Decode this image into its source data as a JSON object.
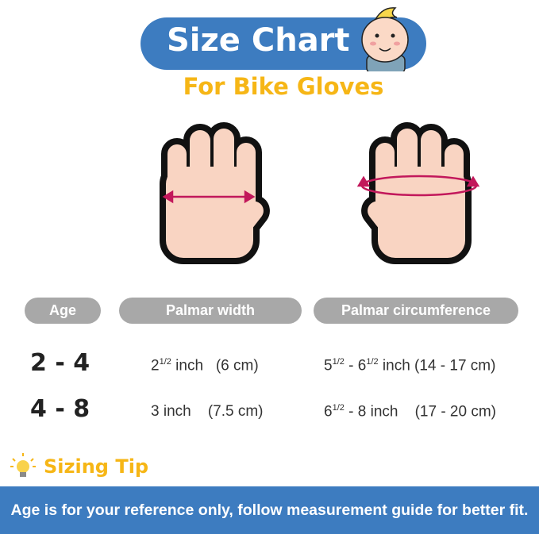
{
  "colors": {
    "blue": "#3d7cc0",
    "yellow": "#f6b616",
    "gray": "#a8a8a8",
    "skin": "#f9d4c2",
    "arrow": "#c2185b"
  },
  "header": {
    "title": "Size Chart",
    "subtitle": "For Bike Gloves",
    "mascot_icon": "baby-face-icon"
  },
  "table": {
    "headers": [
      "Age",
      "Palmar width",
      "Palmar circumference"
    ],
    "rows": [
      {
        "age": "2 - 4",
        "width_base": "2",
        "width_frac": "1/2",
        "width_rest": " inch   (6 cm)",
        "circ_a": "5",
        "circ_a_frac": "1/2",
        "circ_mid": " - 6",
        "circ_b_frac": "1/2",
        "circ_rest": " inch (14 - 17 cm)"
      },
      {
        "age": "4 - 8",
        "width_text": "3 inch    (7.5 cm)",
        "circ_a": "6",
        "circ_a_frac": "1/2",
        "circ_rest": " - 8 inch    (17 - 20 cm)"
      }
    ]
  },
  "tip": {
    "icon": "lightbulb-icon",
    "label": "Sizing Tip"
  },
  "banner": "Age is for your reference only, follow measurement guide for better fit."
}
